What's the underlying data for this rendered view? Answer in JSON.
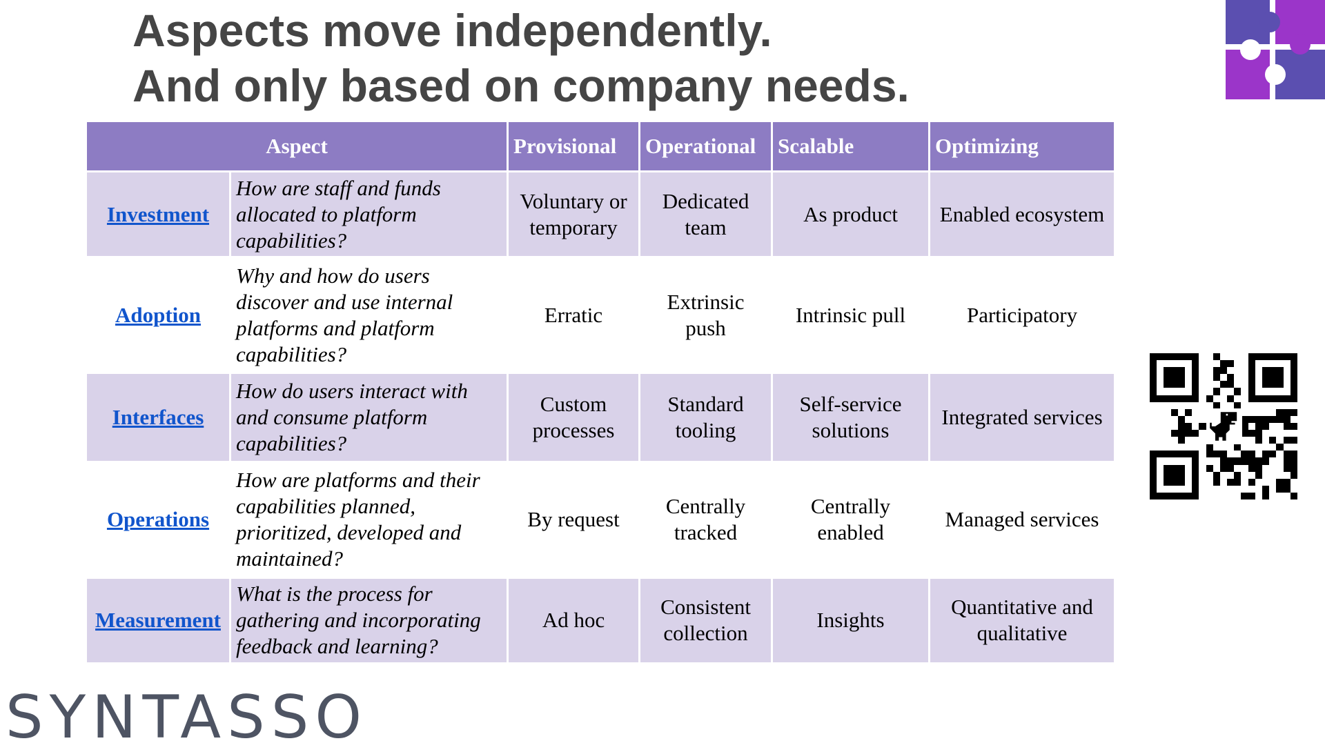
{
  "title": {
    "line1": "Aspects move independently.",
    "line2": "And only based on company needs."
  },
  "table": {
    "headers": {
      "aspect": "Aspect",
      "levels": [
        "Provisional",
        "Operational",
        "Scalable",
        "Optimizing"
      ]
    },
    "rows": [
      {
        "aspect": "Investment",
        "question": "How are staff and funds allocated to platform capabilities?",
        "values": [
          "Voluntary or temporary",
          "Dedicated team",
          "As product",
          "Enabled ecosystem"
        ]
      },
      {
        "aspect": "Adoption",
        "question": "Why and how do users discover and use internal platforms and platform capabilities?",
        "values": [
          "Erratic",
          "Extrinsic push",
          "Intrinsic pull",
          "Participatory"
        ]
      },
      {
        "aspect": "Interfaces",
        "question": "How do users interact with and consume platform capabilities?",
        "values": [
          "Custom processes",
          "Standard tooling",
          "Self-service solutions",
          "Integrated services"
        ]
      },
      {
        "aspect": "Operations",
        "question": "How are platforms and their capabilities planned, prioritized, developed and maintained?",
        "values": [
          "By request",
          "Centrally tracked",
          "Centrally enabled",
          "Managed services"
        ]
      },
      {
        "aspect": "Measurement",
        "question": "What is the process for gathering and incorporating feedback and learning?",
        "values": [
          "Ad hoc",
          "Consistent collection",
          "Insights",
          "Quantitative and qualitative"
        ]
      }
    ]
  },
  "brand": {
    "wordmark": "SYNTASSO"
  },
  "colors": {
    "header_bg": "#8d7cc3",
    "row_alt_bg": "#d9d2e9",
    "link": "#1155cc",
    "title_text": "#454545",
    "logo_purple": "#5b4fb0",
    "logo_magenta": "#9b35c9"
  },
  "icons": {
    "logo": "puzzle-piece-logo",
    "qr": "qr-code",
    "qr_center": "dinosaur-icon"
  }
}
